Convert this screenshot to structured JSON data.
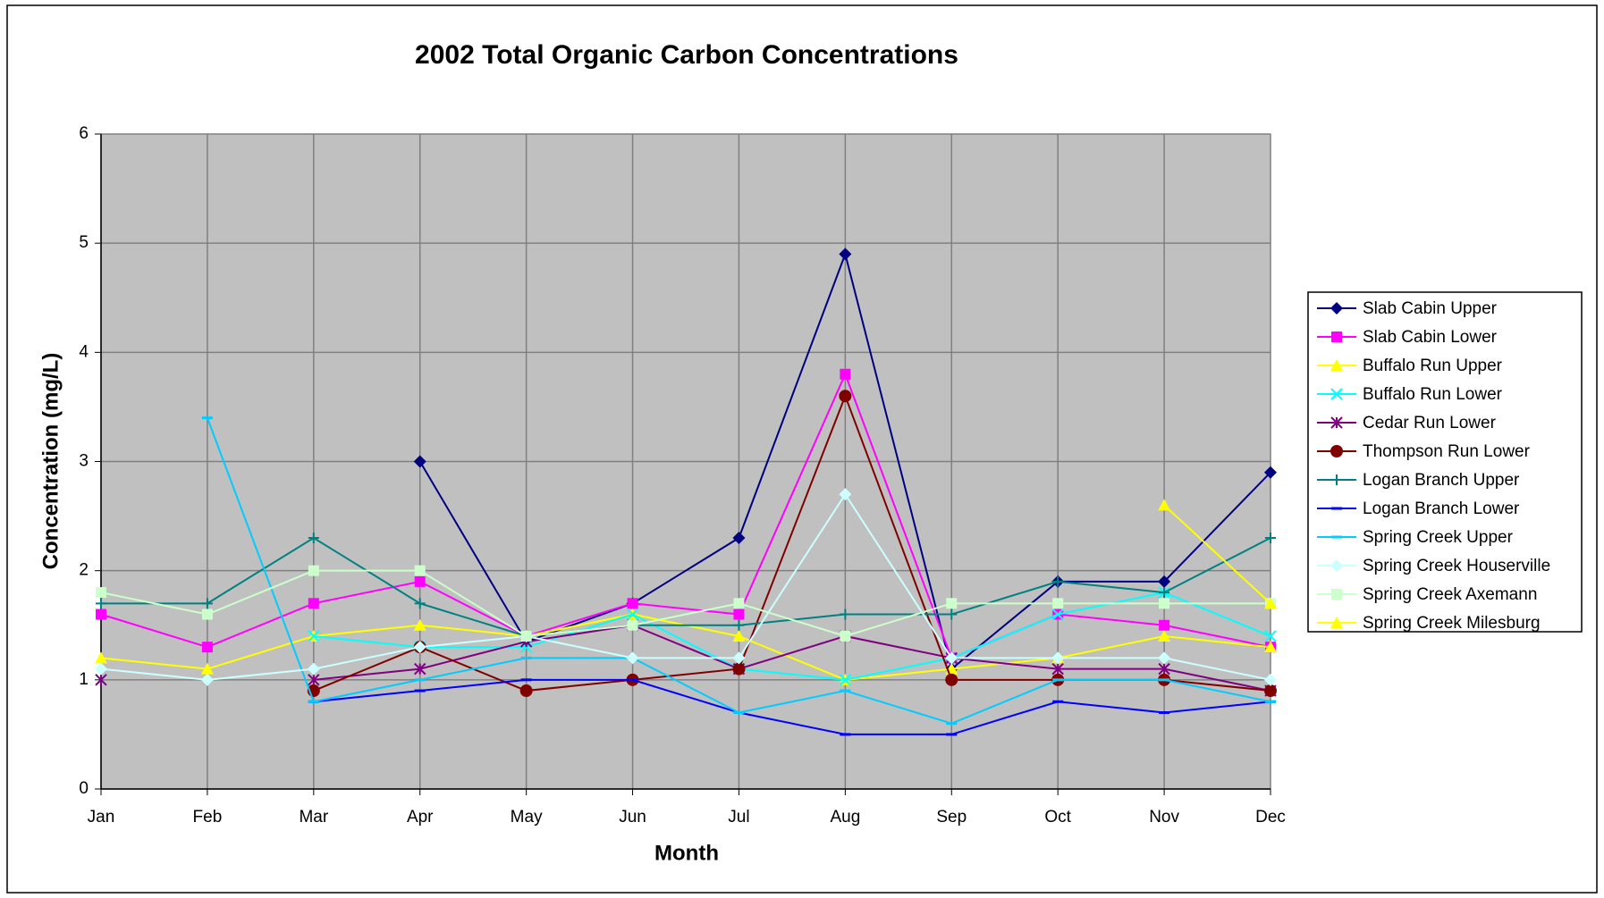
{
  "chart_data": {
    "type": "line",
    "title": "2002 Total Organic Carbon Concentrations",
    "x_label": "Month",
    "y_label": "Concentration (mg/L)",
    "categories": [
      "Jan",
      "Feb",
      "Mar",
      "Apr",
      "May",
      "Jun",
      "Jul",
      "Aug",
      "Sep",
      "Oct",
      "Nov",
      "Dec"
    ],
    "ylim": [
      0,
      6
    ],
    "yticks": [
      0,
      1,
      2,
      3,
      4,
      5,
      6
    ],
    "grid": true,
    "legend": "right",
    "series": [
      {
        "name": "Slab Cabin Upper",
        "color": "#000080",
        "marker": "diamond",
        "values": [
          null,
          null,
          null,
          3.0,
          1.35,
          1.7,
          2.3,
          4.9,
          1.1,
          1.9,
          1.9,
          2.9
        ]
      },
      {
        "name": "Slab Cabin Lower",
        "color": "#FF00FF",
        "marker": "square",
        "values": [
          1.6,
          1.3,
          1.7,
          1.9,
          1.4,
          1.7,
          1.6,
          3.8,
          1.2,
          1.6,
          1.5,
          1.3
        ]
      },
      {
        "name": "Buffalo Run Upper",
        "color": "#FFFF00",
        "marker": "triangle",
        "values": [
          1.2,
          1.1,
          1.4,
          1.5,
          1.4,
          1.6,
          1.4,
          1.0,
          1.1,
          1.2,
          1.4,
          1.3
        ]
      },
      {
        "name": "Buffalo Run Lower",
        "color": "#00FFFF",
        "marker": "x",
        "values": [
          1.0,
          null,
          1.4,
          1.3,
          1.3,
          1.6,
          1.1,
          1.0,
          1.2,
          1.6,
          1.8,
          1.4
        ]
      },
      {
        "name": "Cedar Run Lower",
        "color": "#800080",
        "marker": "star",
        "values": [
          1.0,
          null,
          1.0,
          1.1,
          1.35,
          1.5,
          1.1,
          1.4,
          1.2,
          1.1,
          1.1,
          0.9
        ]
      },
      {
        "name": "Thompson Run Lower",
        "color": "#800000",
        "marker": "circle",
        "values": [
          null,
          null,
          0.9,
          1.3,
          0.9,
          1.0,
          1.1,
          3.6,
          1.0,
          1.0,
          1.0,
          0.9
        ]
      },
      {
        "name": "Logan Branch Upper",
        "color": "#008080",
        "marker": "plus",
        "values": [
          1.7,
          1.7,
          2.3,
          1.7,
          1.4,
          1.5,
          1.5,
          1.6,
          1.6,
          1.9,
          1.8,
          2.3
        ]
      },
      {
        "name": "Logan Branch Lower",
        "color": "#0000FF",
        "marker": "dash",
        "values": [
          null,
          null,
          0.8,
          0.9,
          1.0,
          1.0,
          0.7,
          0.5,
          0.5,
          0.8,
          0.7,
          0.8
        ]
      },
      {
        "name": "Spring Creek Upper",
        "color": "#00CCFF",
        "marker": "dash",
        "values": [
          null,
          3.4,
          0.8,
          1.0,
          1.2,
          1.2,
          0.7,
          0.9,
          0.6,
          1.0,
          1.0,
          0.8
        ]
      },
      {
        "name": "Spring Creek Houserville",
        "color": "#CCFFFF",
        "marker": "diamond",
        "values": [
          1.1,
          1.0,
          1.1,
          1.3,
          1.4,
          1.2,
          1.2,
          2.7,
          1.2,
          1.2,
          1.2,
          1.0
        ]
      },
      {
        "name": "Spring Creek Axemann",
        "color": "#CCFFCC",
        "marker": "square",
        "values": [
          1.8,
          1.6,
          2.0,
          2.0,
          1.4,
          1.5,
          1.7,
          1.4,
          1.7,
          1.7,
          1.7,
          1.7
        ]
      },
      {
        "name": "Spring Creek Milesburg",
        "color": "#FFFF00",
        "marker": "triangle",
        "values": [
          null,
          null,
          null,
          null,
          null,
          null,
          null,
          null,
          null,
          null,
          2.6,
          1.7
        ]
      }
    ]
  }
}
